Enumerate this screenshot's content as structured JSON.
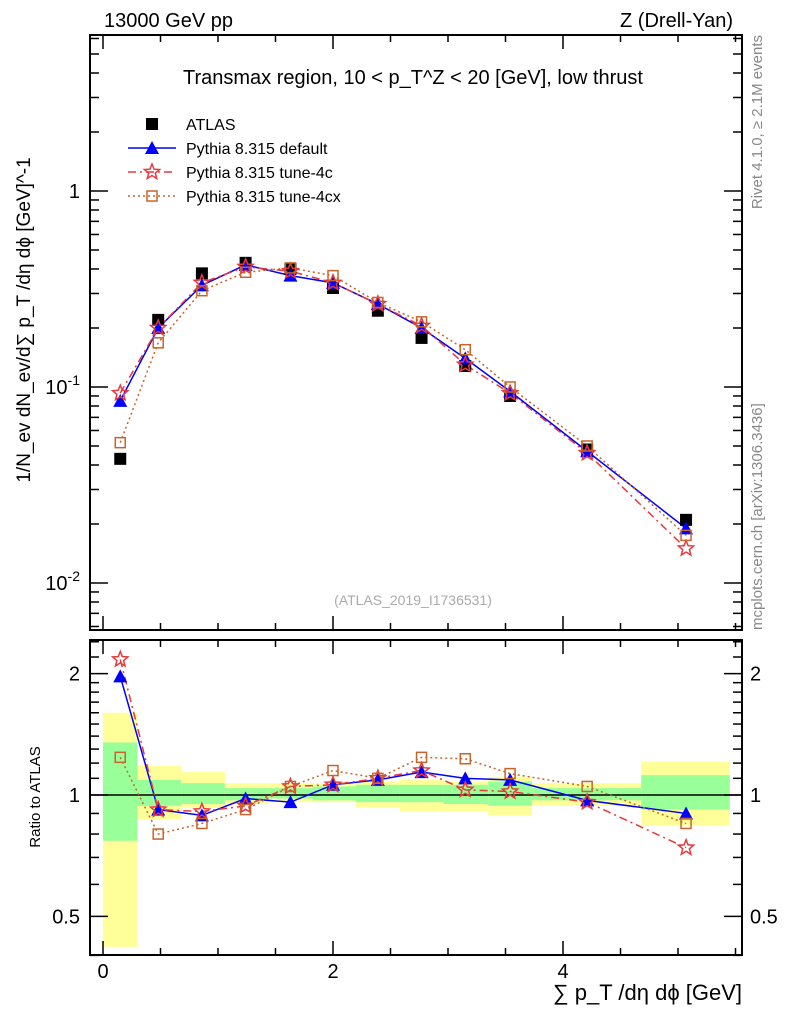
{
  "header": {
    "energy": "13000 GeV pp",
    "process": "Z (Drell-Yan)"
  },
  "side": {
    "rivet": "Rivet 4.1.0, ≥ 2.1M events",
    "mcplots": "mcplots.cern.ch [arXiv:1306.3436]"
  },
  "chart_data": {
    "type": "line",
    "title": "Transmax region, 10 < p_T^Z < 20 [GeV], low thrust",
    "watermark": "(ATLAS_2019_I1736531)",
    "xlabel": "∑ p_T /dη dϕ [GeV]",
    "ylabel": "1/N_ev dN_ev/d∑ p_T /dη dϕ [GeV]^-1",
    "ratio_ylabel": "Ratio to ATLAS",
    "xlim": [
      -0.1,
      5.65
    ],
    "ylim": [
      0.0058,
      6.2
    ],
    "ratio_ylim": [
      0.4,
      2.42
    ],
    "x_ticks": [
      "0",
      "2",
      "4"
    ],
    "y_ticks": [
      "10^-2",
      "10^-1",
      "1"
    ],
    "ratio_ticks": [
      "0.5",
      "1",
      "2"
    ],
    "legend_position": "top-left",
    "x": [
      0.15,
      0.48,
      0.86,
      1.24,
      1.63,
      2.0,
      2.39,
      2.77,
      3.15,
      3.54,
      4.21,
      5.07
    ],
    "bin_edges": [
      0,
      0.3,
      0.68,
      1.06,
      1.44,
      1.82,
      2.2,
      2.58,
      2.96,
      3.35,
      3.73,
      4.68,
      5.45
    ],
    "series": [
      {
        "name": "ATLAS",
        "color": "#000000",
        "values": [
          0.043,
          0.22,
          0.38,
          0.43,
          0.4,
          0.32,
          0.245,
          0.178,
          0.128,
          0.09,
          0.048,
          0.021
        ]
      },
      {
        "name": "Pythia 8.315 default",
        "color": "#0000ff",
        "values": [
          0.085,
          0.2,
          0.33,
          0.42,
          0.37,
          0.34,
          0.265,
          0.2,
          0.14,
          0.095,
          0.047,
          0.019
        ],
        "ratio": [
          1.97,
          0.92,
          0.89,
          0.98,
          0.96,
          1.06,
          1.09,
          1.14,
          1.1,
          1.09,
          0.97,
          0.9
        ]
      },
      {
        "name": "Pythia 8.315 tune-4c",
        "color": "#e8383b",
        "values": [
          0.093,
          0.2,
          0.34,
          0.41,
          0.39,
          0.34,
          0.265,
          0.205,
          0.13,
          0.093,
          0.046,
          0.015
        ],
        "ratio": [
          2.17,
          0.92,
          0.91,
          0.94,
          1.05,
          1.06,
          1.1,
          1.15,
          1.03,
          1.02,
          0.96,
          0.74
        ]
      },
      {
        "name": "Pythia 8.315 tune-4cx",
        "color": "#c8642a",
        "values": [
          0.052,
          0.168,
          0.31,
          0.385,
          0.405,
          0.37,
          0.27,
          0.215,
          0.155,
          0.1,
          0.05,
          0.0175
        ],
        "ratio": [
          1.24,
          0.8,
          0.85,
          0.92,
          1.05,
          1.15,
          1.1,
          1.24,
          1.23,
          1.13,
          1.05,
          0.85
        ]
      }
    ],
    "bands": {
      "yellow": [
        [
          0.42,
          1.6
        ],
        [
          0.87,
          1.18
        ],
        [
          0.93,
          1.14
        ],
        [
          0.95,
          1.07
        ],
        [
          0.96,
          1.07
        ],
        [
          0.96,
          1.07
        ],
        [
          0.93,
          1.08
        ],
        [
          0.91,
          1.09
        ],
        [
          0.91,
          1.08
        ],
        [
          0.89,
          1.11
        ],
        [
          0.94,
          1.07
        ],
        [
          0.84,
          1.21
        ]
      ],
      "green": [
        [
          0.77,
          1.35
        ],
        [
          0.94,
          1.09
        ],
        [
          0.95,
          1.07
        ],
        [
          0.97,
          1.04
        ],
        [
          0.98,
          1.04
        ],
        [
          0.97,
          1.05
        ],
        [
          0.96,
          1.06
        ],
        [
          0.96,
          1.06
        ],
        [
          0.95,
          1.06
        ],
        [
          0.94,
          1.08
        ],
        [
          0.97,
          1.04
        ],
        [
          0.92,
          1.12
        ]
      ]
    }
  }
}
